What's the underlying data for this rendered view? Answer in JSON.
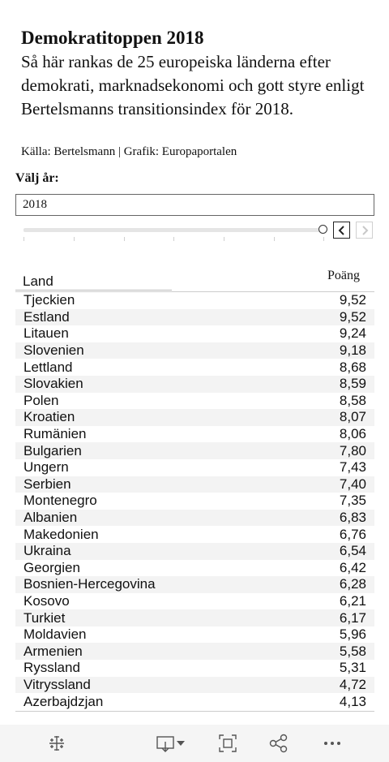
{
  "header": {
    "title": "Demokratitoppen 2018",
    "description": "Så här rankas de 25 europeiska länderna efter demokrati, marknadsekonomi och gott styre enligt Bertelsmanns transitionsindex för 2018.",
    "source": "Källa: Bertelsmann | Grafik: Europaportalen"
  },
  "filter": {
    "label": "Välj år:",
    "selected_year": "2018"
  },
  "table": {
    "col_country": "Land",
    "col_score": "Poäng",
    "rows": [
      {
        "country": "Tjeckien",
        "score": "9,52"
      },
      {
        "country": "Estland",
        "score": "9,52"
      },
      {
        "country": "Litauen",
        "score": "9,24"
      },
      {
        "country": "Slovenien",
        "score": "9,18"
      },
      {
        "country": "Lettland",
        "score": "8,68"
      },
      {
        "country": "Slovakien",
        "score": "8,59"
      },
      {
        "country": "Polen",
        "score": "8,58"
      },
      {
        "country": "Kroatien",
        "score": "8,07"
      },
      {
        "country": "Rumänien",
        "score": "8,06"
      },
      {
        "country": "Bulgarien",
        "score": "7,80"
      },
      {
        "country": "Ungern",
        "score": "7,43"
      },
      {
        "country": "Serbien",
        "score": "7,40"
      },
      {
        "country": "Montenegro",
        "score": "7,35"
      },
      {
        "country": "Albanien",
        "score": "6,83"
      },
      {
        "country": "Makedonien",
        "score": "6,76"
      },
      {
        "country": "Ukraina",
        "score": "6,54"
      },
      {
        "country": "Georgien",
        "score": "6,42"
      },
      {
        "country": "Bosnien-Hercegovina",
        "score": "6,28"
      },
      {
        "country": "Kosovo",
        "score": "6,21"
      },
      {
        "country": "Turkiet",
        "score": "6,17"
      },
      {
        "country": "Moldavien",
        "score": "5,96"
      },
      {
        "country": "Armenien",
        "score": "5,58"
      },
      {
        "country": "Ryssland",
        "score": "5,31"
      },
      {
        "country": "Vitryssland",
        "score": "4,72"
      },
      {
        "country": "Azerbajdzjan",
        "score": "4,13"
      }
    ]
  },
  "toolbar": {
    "icons": [
      "tableau-logo-icon",
      "download-icon",
      "dropdown-caret-icon",
      "fullscreen-icon",
      "share-icon",
      "more-icon"
    ]
  },
  "colors": {
    "text": "#111111",
    "row_stripe": "#f3f3f3",
    "toolbar_bg": "#f5f5f5"
  }
}
